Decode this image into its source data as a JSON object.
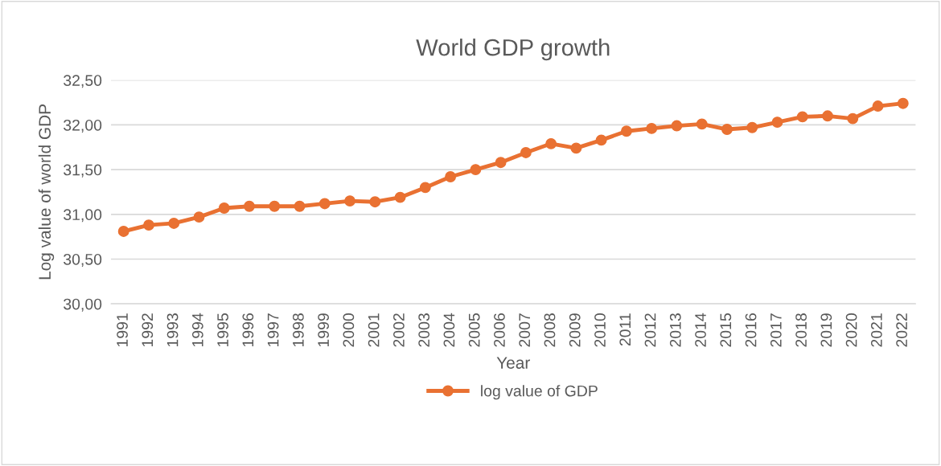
{
  "chart_data": {
    "type": "line",
    "title": "World GDP growth",
    "xlabel": "Year",
    "ylabel": "Log value of world GDP",
    "categories": [
      "1991",
      "1992",
      "1993",
      "1994",
      "1995",
      "1996",
      "1997",
      "1998",
      "1999",
      "2000",
      "2001",
      "2002",
      "2003",
      "2004",
      "2005",
      "2006",
      "2007",
      "2008",
      "2009",
      "2010",
      "2011",
      "2012",
      "2013",
      "2014",
      "2015",
      "2016",
      "2017",
      "2018",
      "2019",
      "2020",
      "2021",
      "2022"
    ],
    "series": [
      {
        "name": "log value of GDP",
        "color": "#e97132",
        "values": [
          30.81,
          30.88,
          30.9,
          30.97,
          31.07,
          31.09,
          31.09,
          31.09,
          31.12,
          31.15,
          31.14,
          31.19,
          31.3,
          31.42,
          31.5,
          31.58,
          31.69,
          31.79,
          31.74,
          31.83,
          31.93,
          31.96,
          31.99,
          32.01,
          31.95,
          31.97,
          32.03,
          32.09,
          32.1,
          32.07,
          32.21,
          32.24
        ]
      }
    ],
    "ylim": [
      30,
      32.5
    ],
    "yticks": [
      {
        "value": 30,
        "label": "30,00"
      },
      {
        "value": 30.5,
        "label": "30,50"
      },
      {
        "value": 31,
        "label": "31,00"
      },
      {
        "value": 31.5,
        "label": "31,50"
      },
      {
        "value": 32,
        "label": "32,00"
      },
      {
        "value": 32.5,
        "label": "32,50"
      }
    ],
    "grid": "y",
    "legend": "bottom",
    "marker": "circle",
    "line_style": "solid"
  }
}
